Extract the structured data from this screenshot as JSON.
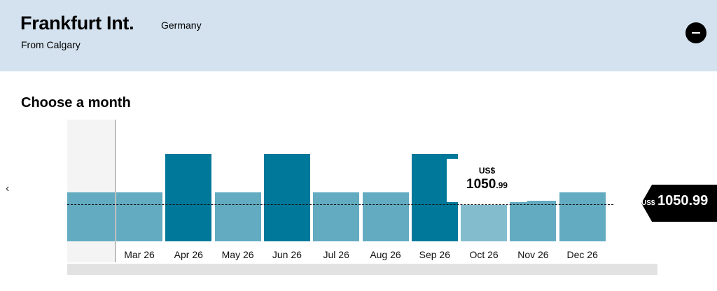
{
  "header": {
    "title": "Frankfurt Int.",
    "country": "Germany",
    "origin": "From Calgary"
  },
  "section_title": "Choose a month",
  "nav": {
    "prev": "‹",
    "next": "›"
  },
  "colors": {
    "header_bg": "#d4e2ef",
    "bar_normal": "#62abc0",
    "bar_high": "#00789a",
    "bar_selected": "#83bccc"
  },
  "tooltip": {
    "currency": "US$",
    "price_main": "1050",
    "price_cents": ".99"
  },
  "price_flag": {
    "currency": "US$",
    "price": "1050.99"
  },
  "chart_data": {
    "type": "bar",
    "categories": [
      "Mar 26",
      "Apr 26",
      "May 26",
      "Jun 26",
      "Jul 26",
      "Aug 26",
      "Sep 26",
      "Oct 26",
      "Nov 26",
      "Dec 26"
    ],
    "values": [
      1,
      1.78,
      1,
      1.78,
      1,
      1,
      1.78,
      0.74,
      0.83,
      1
    ],
    "levels": [
      "normal",
      "high",
      "normal",
      "high",
      "normal",
      "normal",
      "high",
      "selected",
      "normal",
      "normal"
    ],
    "placeholder_level": 1,
    "baseline_level": 0.74,
    "selected": "Oct 26"
  }
}
